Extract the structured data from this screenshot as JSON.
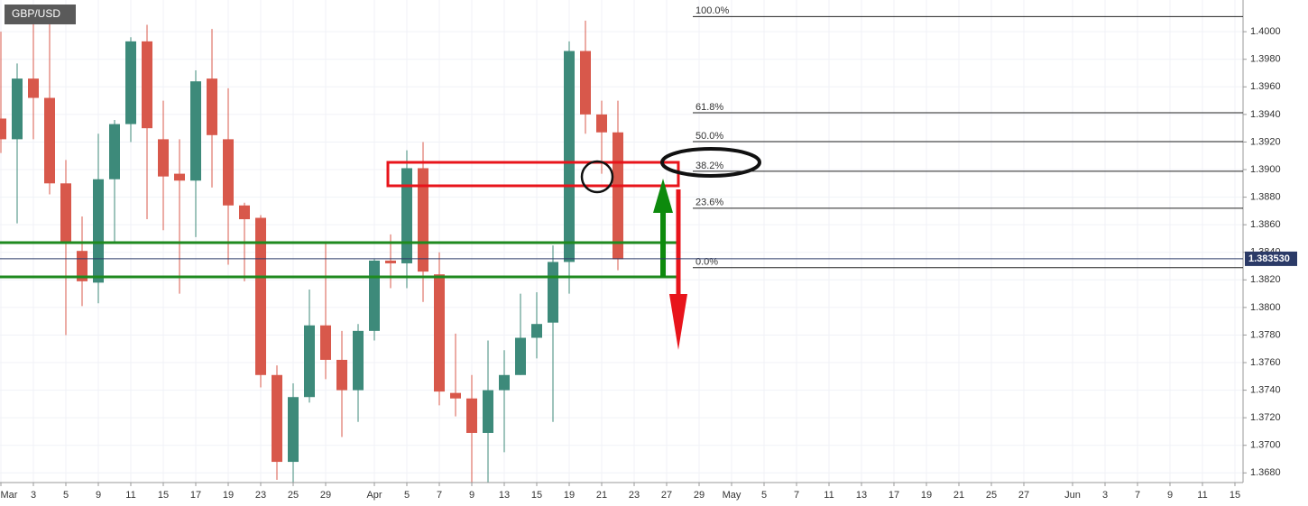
{
  "chart_data": {
    "type": "candlestick",
    "title": "GBP/USD",
    "categories": [
      "Mar",
      null,
      "3",
      null,
      "5",
      null,
      "9",
      null,
      "11",
      null,
      "15",
      null,
      "17",
      null,
      "19",
      null,
      "23",
      null,
      "25",
      null,
      "29",
      null,
      null,
      "Apr",
      null,
      "5",
      null,
      "7",
      null,
      "9",
      null,
      "13",
      null,
      "15",
      null,
      "19",
      null,
      "21",
      null,
      "23",
      null,
      "27",
      null,
      "29",
      null,
      "May",
      null,
      "5",
      null,
      "7",
      null,
      "11",
      null,
      "13",
      null,
      "17",
      null,
      "19",
      null,
      "21",
      null,
      "25",
      null,
      "27",
      null,
      null,
      "Jun",
      null,
      "3",
      null,
      "7",
      null,
      "9",
      null,
      "11",
      null,
      "15"
    ],
    "open": [
      1.3937,
      1.3922,
      1.3966,
      1.3952,
      1.389,
      1.3841,
      1.3818,
      1.3893,
      1.3933,
      1.3993,
      1.3922,
      1.3897,
      1.3892,
      1.3966,
      1.3922,
      1.3874,
      1.3865,
      1.3751,
      1.3688,
      1.3735,
      1.3787,
      1.3762,
      1.374,
      1.3783,
      1.3834,
      1.3832,
      1.3901,
      1.3824,
      1.3738,
      1.3734,
      1.3709,
      1.374,
      1.3751,
      1.3778,
      1.3789,
      1.3833,
      1.3986,
      1.394,
      1.3927,
      null,
      null,
      null,
      null,
      null,
      null,
      null,
      null,
      null,
      null,
      null,
      null,
      null,
      null,
      null,
      null,
      null,
      null,
      null,
      null,
      null,
      null,
      null,
      null,
      null,
      null,
      null,
      null,
      null,
      null,
      null,
      null,
      null,
      null,
      null,
      null,
      null,
      null
    ],
    "high": [
      1.4,
      1.3977,
      1.4011,
      1.4016,
      1.3907,
      1.3866,
      1.3926,
      1.3936,
      1.3996,
      1.4005,
      1.395,
      1.3922,
      1.3972,
      1.4002,
      1.3959,
      1.3876,
      1.3867,
      1.3758,
      1.3745,
      1.3813,
      1.3848,
      1.3783,
      1.3788,
      1.3835,
      1.3853,
      1.3914,
      1.392,
      1.384,
      1.3781,
      1.3751,
      1.3776,
      1.3769,
      1.381,
      1.3811,
      1.3845,
      1.3993,
      1.4008,
      1.395,
      1.395,
      null,
      null,
      null,
      null,
      null,
      null,
      null,
      null,
      null,
      null,
      null,
      null,
      null,
      null,
      null,
      null,
      null,
      null,
      null,
      null,
      null,
      null,
      null,
      null,
      null,
      null,
      null,
      null,
      null,
      null,
      null,
      null,
      null,
      null,
      null,
      null,
      null,
      null
    ],
    "low": [
      1.3912,
      1.3861,
      1.3922,
      1.3882,
      1.378,
      1.3801,
      1.3803,
      1.3846,
      1.392,
      1.3864,
      1.3856,
      1.381,
      1.3851,
      1.3887,
      1.3831,
      1.3819,
      1.3742,
      1.3675,
      1.3673,
      1.3731,
      1.3748,
      1.3706,
      1.3717,
      1.3776,
      1.3814,
      1.3814,
      1.3804,
      1.3729,
      1.3721,
      1.3673,
      1.3673,
      1.3695,
      1.3751,
      1.3763,
      1.3717,
      1.381,
      1.3926,
      1.3897,
      1.3827,
      null,
      null,
      null,
      null,
      null,
      null,
      null,
      null,
      null,
      null,
      null,
      null,
      null,
      null,
      null,
      null,
      null,
      null,
      null,
      null,
      null,
      null,
      null,
      null,
      null,
      null,
      null,
      null,
      null,
      null,
      null,
      null,
      null,
      null,
      null,
      null,
      null,
      null
    ],
    "close": [
      1.3922,
      1.3966,
      1.3952,
      1.389,
      1.3848,
      1.3819,
      1.3893,
      1.3933,
      1.3993,
      1.393,
      1.3895,
      1.3892,
      1.3964,
      1.3925,
      1.3874,
      1.3864,
      1.3751,
      1.3688,
      1.3735,
      1.3787,
      1.3762,
      1.374,
      1.3783,
      1.3834,
      1.3832,
      1.3901,
      1.3826,
      1.3739,
      1.3734,
      1.3709,
      1.374,
      1.3751,
      1.3778,
      1.3788,
      1.3833,
      1.3986,
      1.394,
      1.3927,
      1.3835,
      null,
      null,
      null,
      null,
      null,
      null,
      null,
      null,
      null,
      null,
      null,
      null,
      null,
      null,
      null,
      null,
      null,
      null,
      null,
      null,
      null,
      null,
      null,
      null,
      null,
      null,
      null,
      null,
      null,
      null,
      null,
      null,
      null,
      null,
      null,
      null,
      null,
      null
    ],
    "up_color": "#3d8a7a",
    "down_color": "#d8584b",
    "ylim": [
      1.3673,
      1.4023
    ],
    "yticks": [
      {
        "value": 1.368,
        "label": "1.3680"
      },
      {
        "value": 1.37,
        "label": "1.3700"
      },
      {
        "value": 1.372,
        "label": "1.3720"
      },
      {
        "value": 1.374,
        "label": "1.3740"
      },
      {
        "value": 1.376,
        "label": "1.3760"
      },
      {
        "value": 1.378,
        "label": "1.3780"
      },
      {
        "value": 1.38,
        "label": "1.3800"
      },
      {
        "value": 1.382,
        "label": "1.3820"
      },
      {
        "value": 1.384,
        "label": "1.3840"
      },
      {
        "value": 1.386,
        "label": "1.3860"
      },
      {
        "value": 1.388,
        "label": "1.3880"
      },
      {
        "value": 1.39,
        "label": "1.3900"
      },
      {
        "value": 1.392,
        "label": "1.3920"
      },
      {
        "value": 1.394,
        "label": "1.3940"
      },
      {
        "value": 1.396,
        "label": "1.3960"
      },
      {
        "value": 1.398,
        "label": "1.3980"
      },
      {
        "value": 1.4,
        "label": "1.4000"
      }
    ],
    "last_price": {
      "value": 1.38353,
      "label": "1.383530"
    },
    "fib_levels": [
      {
        "value": 100,
        "label": "100.0%",
        "price": 1.4011
      },
      {
        "value": 61.8,
        "label": "61.8%",
        "price": 1.39412
      },
      {
        "value": 50,
        "label": "50.0%",
        "price": 1.39203
      },
      {
        "value": 38.2,
        "label": "38.2%",
        "price": 1.38988
      },
      {
        "value": 23.6,
        "label": "23.6%",
        "price": 1.3872
      },
      {
        "value": 0,
        "label": "0.0%",
        "price": 1.38289
      }
    ],
    "grid": true
  }
}
